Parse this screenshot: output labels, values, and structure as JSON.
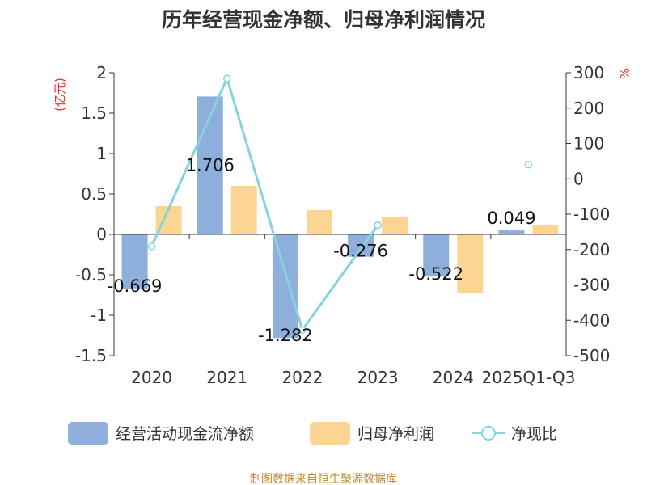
{
  "title": "历年经营现金净额、归母净利润情况",
  "source": "制图数据来自恒生聚源数据库",
  "colors": {
    "operating_cash": "#8eaedc",
    "net_profit": "#fdd593",
    "ratio_line": "#86d3de",
    "unit": "#e8332f",
    "source": "#c0882c",
    "axis": "#333333"
  },
  "chart_data": {
    "type": "bar",
    "categories": [
      "2020",
      "2021",
      "2022",
      "2023",
      "2024",
      "2025Q1-Q3"
    ],
    "ylabel_left": "(亿元)",
    "ylabel_right": "%",
    "ylim_left": [
      -1.5,
      2
    ],
    "ylim_right": [
      -500,
      300
    ],
    "yticks_left": [
      "2",
      "1.5",
      "1",
      "0.5",
      "0",
      "-0.5",
      "-1",
      "-1.5"
    ],
    "yticks_right": [
      "300",
      "200",
      "100",
      "0",
      "-100",
      "-200",
      "-300",
      "-400",
      "-500"
    ],
    "grid": false,
    "legend_position": "bottom",
    "series": [
      {
        "name": "经营活动现金流净额",
        "type": "bar",
        "axis": "left",
        "values": [
          -0.669,
          1.706,
          -1.282,
          -0.276,
          -0.522,
          0.049
        ],
        "labels": [
          "-0.669",
          "1.706",
          "-1.282",
          "-0.276",
          "-0.522",
          "0.049"
        ]
      },
      {
        "name": "归母净利润",
        "type": "bar",
        "axis": "left",
        "values": [
          0.35,
          0.6,
          0.3,
          0.21,
          -0.73,
          0.12
        ]
      },
      {
        "name": "净现比",
        "type": "line",
        "axis": "right",
        "values": [
          -191,
          284,
          -427,
          -131,
          null,
          40
        ]
      }
    ]
  }
}
